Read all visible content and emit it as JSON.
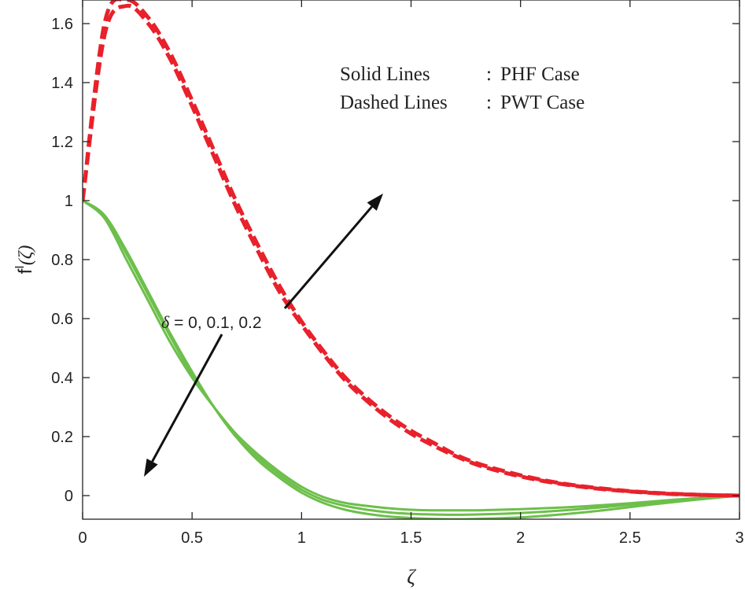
{
  "chart_data": {
    "type": "line",
    "title": "",
    "xlabel": "ζ",
    "ylabel_main": "f",
    "ylabel_sup": "I",
    "ylabel_arg": "(ζ)",
    "xlim": [
      0,
      3
    ],
    "ylim": [
      -0.08,
      1.68
    ],
    "xticks": [
      0,
      0.5,
      1,
      1.5,
      2,
      2.5,
      3
    ],
    "xtick_labels": [
      "0",
      "0.5",
      "1",
      "1.5",
      "2",
      "2.5",
      "3"
    ],
    "yticks": [
      0,
      0.2,
      0.4,
      0.6,
      0.8,
      1,
      1.2,
      1.4,
      1.6
    ],
    "ytick_labels": [
      "0",
      "0.2",
      "0.4",
      "0.6",
      "0.8",
      "1",
      "1.2",
      "1.4",
      "1.6"
    ],
    "grid": false,
    "legend_lines": [
      {
        "label": "Solid Lines",
        "sep": ":",
        "desc": "PHF Case"
      },
      {
        "label": "Dashed Lines",
        "sep": ":",
        "desc": "PWT Case"
      }
    ],
    "annotation": {
      "symbol": "δ",
      "text": " = 0, 0.1, 0.2"
    },
    "colors": {
      "solid": "#6dbf4b",
      "dashed": "#e8212b",
      "arrow": "#111111"
    },
    "x": [
      0,
      0.1,
      0.2,
      0.3,
      0.4,
      0.5,
      0.6,
      0.7,
      0.8,
      0.9,
      1.0,
      1.1,
      1.2,
      1.3,
      1.4,
      1.5,
      1.6,
      1.7,
      1.8,
      1.9,
      2.0,
      2.1,
      2.2,
      2.3,
      2.4,
      2.5,
      2.6,
      2.7,
      2.8,
      2.9,
      3.0
    ],
    "series": [
      {
        "style": "solid",
        "values": [
          1.0,
          0.94,
          0.8,
          0.66,
          0.52,
          0.4,
          0.3,
          0.21,
          0.14,
          0.08,
          0.03,
          -0.005,
          -0.025,
          -0.035,
          -0.043,
          -0.048,
          -0.05,
          -0.05,
          -0.05,
          -0.048,
          -0.046,
          -0.043,
          -0.04,
          -0.036,
          -0.031,
          -0.026,
          -0.02,
          -0.014,
          -0.009,
          -0.004,
          0.0
        ]
      },
      {
        "style": "solid",
        "values": [
          1.0,
          0.95,
          0.82,
          0.68,
          0.54,
          0.41,
          0.3,
          0.2,
          0.13,
          0.07,
          0.02,
          -0.015,
          -0.035,
          -0.048,
          -0.057,
          -0.062,
          -0.064,
          -0.065,
          -0.064,
          -0.062,
          -0.059,
          -0.055,
          -0.05,
          -0.044,
          -0.038,
          -0.031,
          -0.024,
          -0.017,
          -0.011,
          -0.005,
          0.0
        ]
      },
      {
        "style": "solid",
        "values": [
          1.0,
          0.95,
          0.83,
          0.69,
          0.55,
          0.42,
          0.3,
          0.2,
          0.12,
          0.06,
          0.01,
          -0.025,
          -0.048,
          -0.062,
          -0.071,
          -0.076,
          -0.079,
          -0.08,
          -0.079,
          -0.077,
          -0.074,
          -0.069,
          -0.063,
          -0.056,
          -0.048,
          -0.039,
          -0.03,
          -0.022,
          -0.014,
          -0.007,
          0.0
        ]
      },
      {
        "style": "dashed",
        "values": [
          1.0,
          1.56,
          1.66,
          1.6,
          1.48,
          1.32,
          1.15,
          0.98,
          0.83,
          0.69,
          0.58,
          0.48,
          0.39,
          0.32,
          0.26,
          0.21,
          0.17,
          0.135,
          0.105,
          0.083,
          0.065,
          0.05,
          0.038,
          0.028,
          0.02,
          0.014,
          0.009,
          0.005,
          0.003,
          0.001,
          0.0
        ]
      },
      {
        "style": "dashed",
        "values": [
          1.0,
          1.6,
          1.68,
          1.62,
          1.5,
          1.34,
          1.17,
          1.0,
          0.85,
          0.71,
          0.59,
          0.49,
          0.4,
          0.33,
          0.27,
          0.22,
          0.18,
          0.14,
          0.11,
          0.088,
          0.069,
          0.053,
          0.04,
          0.03,
          0.022,
          0.015,
          0.01,
          0.006,
          0.003,
          0.001,
          0.0
        ]
      }
    ]
  }
}
